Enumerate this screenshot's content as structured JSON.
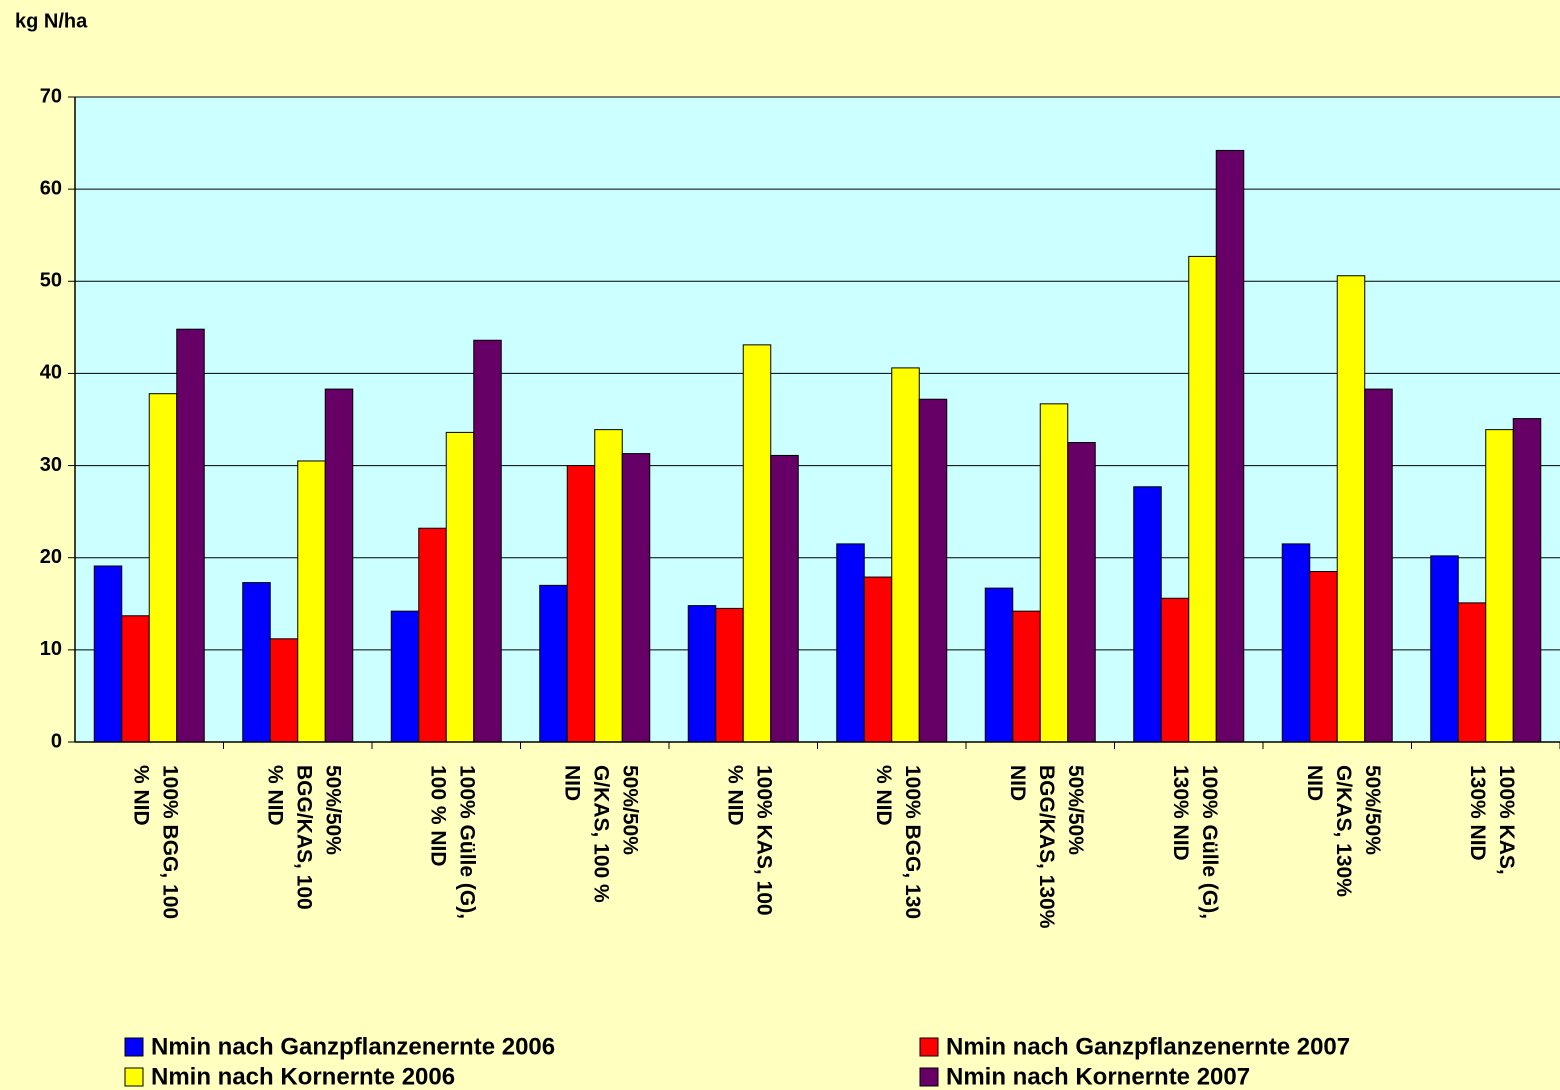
{
  "chart_data": {
    "type": "bar",
    "ylabel": "kg N/ha",
    "categories": [
      "100% BGG, 100\n% NID",
      "50%/50%\nBGG/KAS, 100\n% NID",
      "100% Gülle (G),\n100 % NID",
      "50%/50%\nG/KAS, 100 %\nNID",
      "100% KAS, 100\n% NID",
      "100% BGG, 130\n% NID",
      "50%/50%\nBGG/KAS, 130%\nNID",
      "100% Gülle (G),\n130% NID",
      "50%/50%\nG/KAS, 130%\nNID",
      "100% KAS,\n130% NID"
    ],
    "series": [
      {
        "name": "Nmin nach Ganzpflanzenernte 2006",
        "color": "#0000ff",
        "values": [
          19.1,
          17.3,
          14.2,
          17.0,
          14.8,
          21.5,
          16.7,
          27.7,
          21.5,
          20.2
        ]
      },
      {
        "name": "Nmin nach Ganzpflanzenernte 2007",
        "color": "#ff0000",
        "values": [
          13.7,
          11.2,
          23.2,
          30.0,
          14.5,
          17.9,
          14.2,
          15.6,
          18.5,
          15.1
        ]
      },
      {
        "name": "Nmin nach Kornernte 2006",
        "color": "#ffff00",
        "values": [
          37.8,
          30.5,
          33.6,
          33.9,
          43.1,
          40.6,
          36.7,
          52.7,
          50.6,
          33.9
        ]
      },
      {
        "name": "Nmin nach Kornernte 2007",
        "color": "#660066",
        "values": [
          44.8,
          38.3,
          43.6,
          31.3,
          31.1,
          37.2,
          32.5,
          64.2,
          38.3,
          35.1
        ]
      }
    ],
    "ylim": [
      0,
      70
    ],
    "yticks": [
      0,
      10,
      20,
      30,
      40,
      50,
      60,
      70
    ],
    "grid": true,
    "plot_background": "#ccffff",
    "legend": "bottom"
  }
}
